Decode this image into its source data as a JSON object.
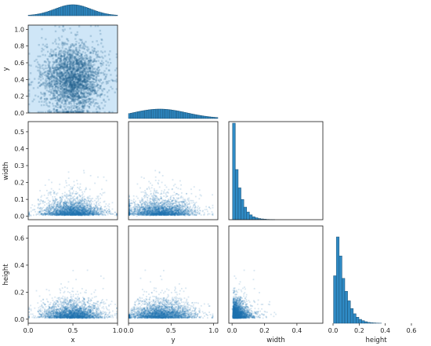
{
  "chart_data": {
    "type": "pairplot",
    "corner": true,
    "variables": [
      "x",
      "y",
      "width",
      "height"
    ],
    "diagonal": "histogram",
    "off_diagonal": "2d-histogram",
    "colors": {
      "density": "#1f77b4",
      "light": "#d6ebfa",
      "hist": "#2f8ac4",
      "edge": "#1b4f72"
    },
    "axes": {
      "x": {
        "lim": [
          0,
          1
        ],
        "ticks": [
          "0.0",
          "0.5",
          "1.0"
        ]
      },
      "y": {
        "lim": [
          0,
          1.05
        ],
        "ticks": [
          "0.0",
          "0.5",
          "1.0"
        ],
        "row_ticks": [
          "0.0",
          "0.2",
          "0.4",
          "0.6",
          "0.8",
          "1.0"
        ]
      },
      "width": {
        "lim": [
          -0.02,
          0.56
        ],
        "ticks": [
          "0.0",
          "0.2",
          "0.4"
        ],
        "row_ticks": [
          "0.0",
          "0.1",
          "0.2",
          "0.3",
          "0.4",
          "0.5"
        ]
      },
      "height": {
        "lim": [
          -0.03,
          0.69
        ],
        "ticks": [
          "0.0",
          "0.2",
          "0.4",
          "0.6"
        ],
        "row_ticks": [
          "0.0",
          "0.2",
          "0.4",
          "0.6"
        ]
      }
    },
    "marginals": {
      "x": {
        "bins": 50,
        "shape": "unimodal",
        "center": 0.5
      },
      "y": {
        "bins": 50,
        "shape": "skewed",
        "mode": 0.35
      },
      "width": {
        "bins": 50,
        "shape": "right-skewed",
        "mode": 0.02,
        "counts": [
          0.0,
          1.0,
          0.52,
          0.33,
          0.21,
          0.13,
          0.08,
          0.05,
          0.03,
          0.02,
          0.012,
          0.008,
          0.005,
          0.003,
          0.002,
          0.001
        ]
      },
      "height": {
        "bins": 50,
        "shape": "right-skewed",
        "mode": 0.03,
        "counts": [
          0.0,
          0.55,
          1.0,
          0.78,
          0.52,
          0.37,
          0.26,
          0.17,
          0.11,
          0.07,
          0.045,
          0.03,
          0.018,
          0.01,
          0.006,
          0.004,
          0.002,
          0.001
        ]
      }
    }
  }
}
